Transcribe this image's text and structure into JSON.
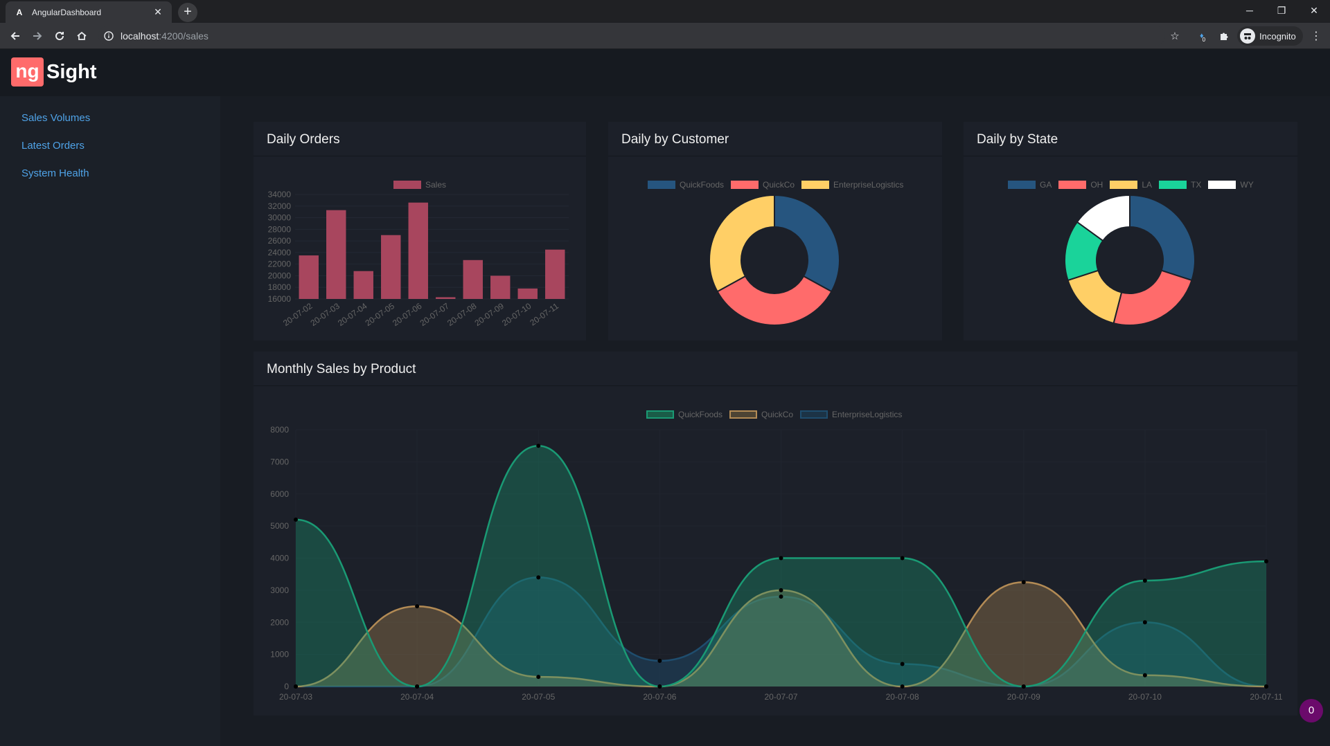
{
  "browser": {
    "tab_title": "AngularDashboard",
    "tab_favicon": "A",
    "new_tab": "+",
    "url_host": "localhost",
    "url_path": ":4200/sales",
    "profile_label": "Incognito",
    "extension_badge": "0"
  },
  "app": {
    "logo_ng": "ng",
    "logo_text": "Sight"
  },
  "sidebar": {
    "items": [
      {
        "label": "Sales Volumes"
      },
      {
        "label": "Latest Orders"
      },
      {
        "label": "System Health"
      }
    ]
  },
  "cards": {
    "daily_orders": "Daily Orders",
    "daily_customer": "Daily by Customer",
    "daily_state": "Daily by State",
    "monthly": "Monthly Sales by Product"
  },
  "notification_badge": "0",
  "colors": {
    "bar": "#a8465e",
    "quickfoods": "#26557f",
    "quickco": "#ff6b6b",
    "enterprise": "#ffcf66",
    "tx": "#1ad39a",
    "wy": "#ffffff",
    "line_quickfoods": "#1a9a74",
    "line_quickco": "#b38b55",
    "line_enterprise": "#1f4d6e"
  },
  "chart_data": [
    {
      "type": "bar",
      "title": "Daily Orders",
      "legend": [
        "Sales"
      ],
      "categories": [
        "20-07-02",
        "20-07-03",
        "20-07-04",
        "20-07-05",
        "20-07-06",
        "20-07-07",
        "20-07-08",
        "20-07-09",
        "20-07-10",
        "20-07-11"
      ],
      "values": [
        23500,
        31300,
        20800,
        27000,
        32600,
        16300,
        22700,
        20000,
        17800,
        24500
      ],
      "ylim": [
        16000,
        34000
      ],
      "yticks": [
        "34000",
        "32000",
        "30000",
        "28000",
        "26000",
        "24000",
        "22000",
        "20000",
        "18000",
        "16000"
      ]
    },
    {
      "type": "pie",
      "title": "Daily by Customer",
      "labels": [
        "QuickFoods",
        "QuickCo",
        "EnterpriseLogistics"
      ],
      "values": [
        33,
        34,
        33
      ]
    },
    {
      "type": "pie",
      "title": "Daily by State",
      "labels": [
        "GA",
        "OH",
        "LA",
        "TX",
        "WY"
      ],
      "values": [
        30,
        24,
        16,
        15,
        15
      ]
    },
    {
      "type": "area",
      "title": "Monthly Sales by Product",
      "categories": [
        "20-07-03",
        "20-07-04",
        "20-07-05",
        "20-07-06",
        "20-07-07",
        "20-07-08",
        "20-07-09",
        "20-07-10",
        "20-07-11"
      ],
      "ylim": [
        0,
        8000
      ],
      "yticks": [
        "8000",
        "7000",
        "6000",
        "5000",
        "4000",
        "3000",
        "2000",
        "1000",
        "0"
      ],
      "series": [
        {
          "name": "QuickFoods",
          "values": [
            5200,
            0,
            7500,
            0,
            4000,
            4000,
            0,
            3300,
            3900
          ]
        },
        {
          "name": "QuickCo",
          "values": [
            0,
            2500,
            300,
            0,
            3000,
            0,
            3250,
            350,
            0
          ]
        },
        {
          "name": "EnterpriseLogistics",
          "values": [
            0,
            0,
            3400,
            800,
            2800,
            700,
            0,
            2000,
            0
          ]
        }
      ]
    }
  ]
}
